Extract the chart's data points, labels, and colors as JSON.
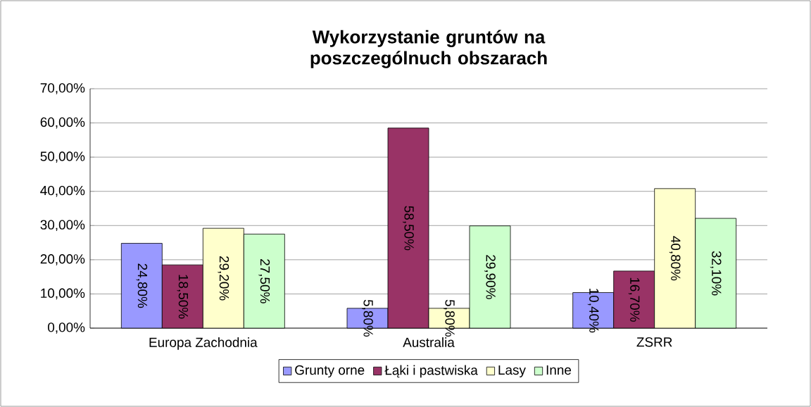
{
  "chart_data": {
    "type": "bar",
    "title": "Wykorzystanie gruntów na poszczególnuch obszarach",
    "categories": [
      "Europa Zachodnia",
      "Australia",
      "ZSRR"
    ],
    "series": [
      {
        "name": "Grunty orne",
        "color": "#9999ff",
        "values": [
          24.8,
          5.8,
          10.4
        ],
        "value_labels": [
          "24,80%",
          "5,80%",
          "10,40%"
        ]
      },
      {
        "name": "Łąki i pastwiska",
        "color": "#993366",
        "values": [
          18.5,
          58.5,
          16.7
        ],
        "value_labels": [
          "18,50%",
          "58,50%",
          "16,70%"
        ]
      },
      {
        "name": "Lasy",
        "color": "#ffffcc",
        "values": [
          29.2,
          5.8,
          40.8
        ],
        "value_labels": [
          "29,20%",
          "5,80%",
          "40,80%"
        ]
      },
      {
        "name": "Inne",
        "color": "#ccffcc",
        "values": [
          27.5,
          29.9,
          32.1
        ],
        "value_labels": [
          "27,50%",
          "29,90%",
          "32,10%"
        ]
      }
    ],
    "ylim": [
      0,
      70
    ],
    "yticks": [
      {
        "value": 0,
        "label": "0,00%"
      },
      {
        "value": 10,
        "label": "10,00%"
      },
      {
        "value": 20,
        "label": "20,00%"
      },
      {
        "value": 30,
        "label": "30,00%"
      },
      {
        "value": 40,
        "label": "40,00%"
      },
      {
        "value": 50,
        "label": "50,00%"
      },
      {
        "value": 60,
        "label": "60,00%"
      },
      {
        "value": 70,
        "label": "70,00%"
      }
    ],
    "grid": "y",
    "legend": "bottom"
  }
}
